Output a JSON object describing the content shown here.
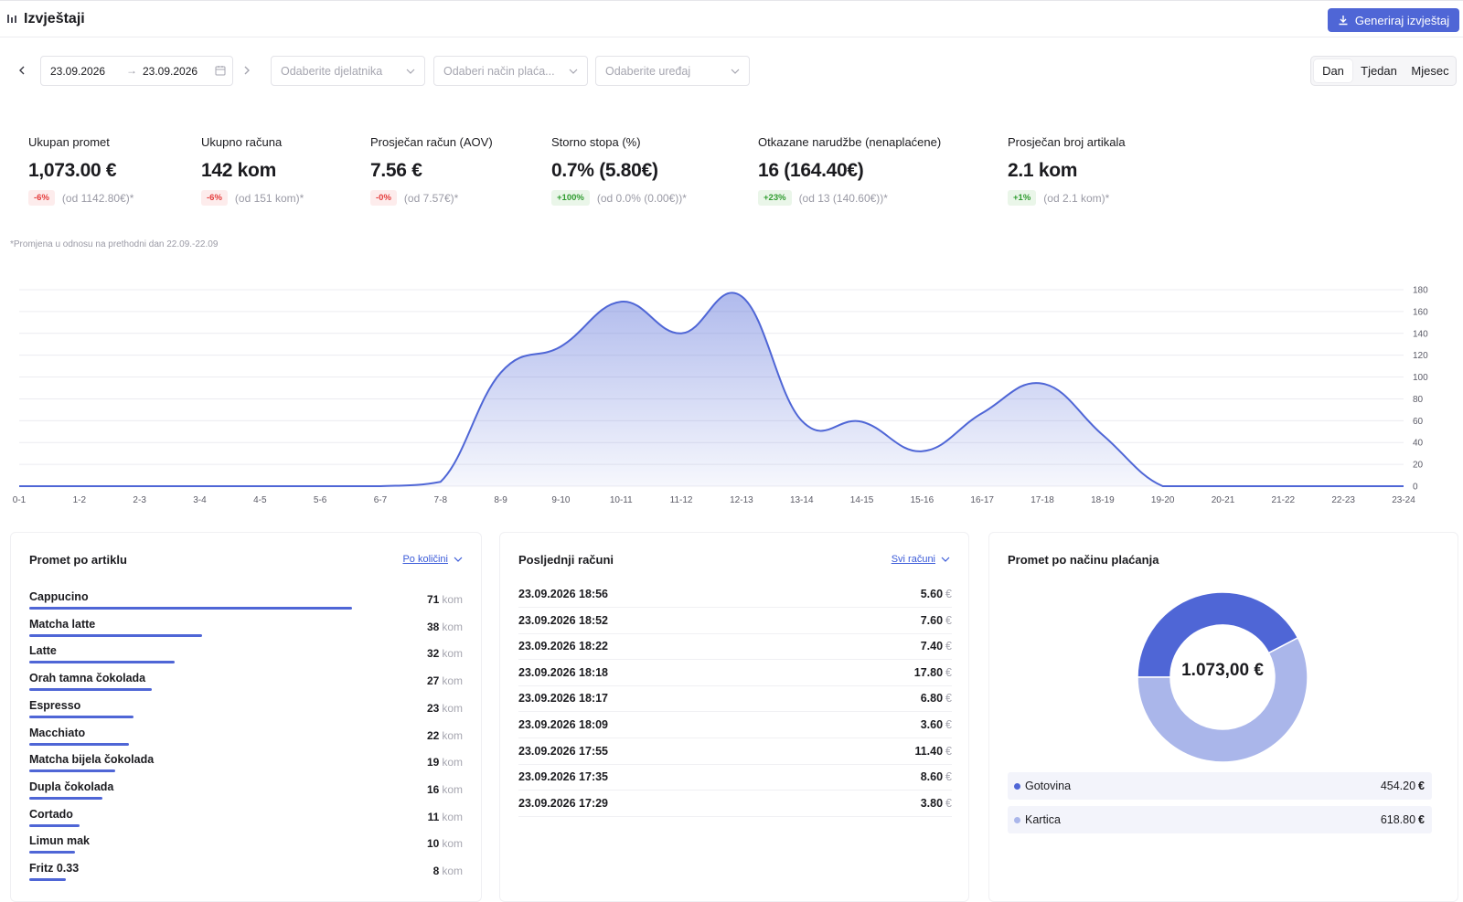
{
  "header": {
    "title": "Izvještaji",
    "generate_label": "Generiraj izvještaj"
  },
  "filters": {
    "date_from": "23.09.2026",
    "date_sep": "→",
    "date_to": "23.09.2026",
    "employee_placeholder": "Odaberite djelatnika",
    "payment_placeholder": "Odaberi način plaća...",
    "device_placeholder": "Odaberite uređaj",
    "periods": [
      "Dan",
      "Tjedan",
      "Mjesec"
    ],
    "active_period": "Dan"
  },
  "kpis": [
    {
      "label": "Ukupan promet",
      "value": "1,073.00 €",
      "badge": "-6%",
      "trend": "neg",
      "compare": "(od 1142.80€)*"
    },
    {
      "label": "Ukupno računa",
      "value": "142 kom",
      "badge": "-6%",
      "trend": "neg",
      "compare": "(od 151 kom)*"
    },
    {
      "label": "Prosječan račun (AOV)",
      "value": "7.56 €",
      "badge": "-0%",
      "trend": "neg",
      "compare": "(od 7.57€)*"
    },
    {
      "label": "Storno stopa (%)",
      "value": "0.7% (5.80€)",
      "badge": "+100%",
      "trend": "pos",
      "compare": "(od 0.0% (0.00€))*"
    },
    {
      "label": "Otkazane narudžbe (nenaplaćene)",
      "value": "16 (164.40€)",
      "badge": "+23%",
      "trend": "pos",
      "compare": "(od 13 (140.60€))*"
    },
    {
      "label": "Prosječan broj artikala",
      "value": "2.1 kom",
      "badge": "+1%",
      "trend": "pos",
      "compare": "(od 2.1 kom)*"
    }
  ],
  "footnote": "*Promjena u odnosu na prethodni dan 22.09.-22.09",
  "chart_data": {
    "type": "area",
    "categories": [
      "0-1",
      "1-2",
      "2-3",
      "3-4",
      "4-5",
      "5-6",
      "6-7",
      "7-8",
      "8-9",
      "9-10",
      "10-11",
      "11-12",
      "12-13",
      "13-14",
      "14-15",
      "15-16",
      "16-17",
      "17-18",
      "18-19",
      "19-20",
      "20-21",
      "21-22",
      "22-23",
      "23-24"
    ],
    "values": [
      0,
      0,
      0,
      0,
      0,
      0,
      0,
      4,
      104,
      128,
      169,
      140,
      174,
      60,
      59,
      32,
      67,
      94,
      47,
      0,
      0,
      0,
      0,
      0
    ],
    "ylim": [
      0,
      180
    ],
    "yticks": [
      "0",
      "20",
      "40",
      "60",
      "80",
      "100",
      "120",
      "140",
      "160",
      "180"
    ],
    "color": "#4f66d6",
    "grid": true
  },
  "articles": {
    "title": "Promet po artiklu",
    "sort_label": "Po količini",
    "unit": "kom",
    "items": [
      {
        "name": "Cappucino",
        "qty": "71",
        "n": 71
      },
      {
        "name": "Matcha latte",
        "qty": "38",
        "n": 38
      },
      {
        "name": "Latte",
        "qty": "32",
        "n": 32
      },
      {
        "name": "Orah tamna čokolada",
        "qty": "27",
        "n": 27
      },
      {
        "name": "Espresso",
        "qty": "23",
        "n": 23
      },
      {
        "name": "Macchiato",
        "qty": "22",
        "n": 22
      },
      {
        "name": "Matcha bijela čokolada",
        "qty": "19",
        "n": 19
      },
      {
        "name": "Dupla čokolada",
        "qty": "16",
        "n": 16
      },
      {
        "name": "Cortado",
        "qty": "11",
        "n": 11
      },
      {
        "name": "Limun mak",
        "qty": "10",
        "n": 10
      },
      {
        "name": "Fritz 0.33",
        "qty": "8",
        "n": 8
      }
    ]
  },
  "bills": {
    "title": "Posljednji računi",
    "filter_label": "Svi računi",
    "currency": "€",
    "items": [
      {
        "datetime": "23.09.2026 18:56",
        "amount": "5.60"
      },
      {
        "datetime": "23.09.2026 18:52",
        "amount": "7.60"
      },
      {
        "datetime": "23.09.2026 18:22",
        "amount": "7.40"
      },
      {
        "datetime": "23.09.2026 18:18",
        "amount": "17.80"
      },
      {
        "datetime": "23.09.2026 18:17",
        "amount": "6.80"
      },
      {
        "datetime": "23.09.2026 18:09",
        "amount": "3.60"
      },
      {
        "datetime": "23.09.2026 17:55",
        "amount": "11.40"
      },
      {
        "datetime": "23.09.2026 17:35",
        "amount": "8.60"
      },
      {
        "datetime": "23.09.2026 17:29",
        "amount": "3.80"
      }
    ]
  },
  "payments": {
    "title": "Promet po načinu plaćanja",
    "total": "1.073,00 €",
    "currency": "€",
    "items": [
      {
        "name": "Gotovina",
        "amount": "454.20",
        "value": 454.2,
        "color": "#4f66d6"
      },
      {
        "name": "Kartica",
        "amount": "618.80",
        "value": 618.8,
        "color": "#aab6ea"
      }
    ]
  }
}
